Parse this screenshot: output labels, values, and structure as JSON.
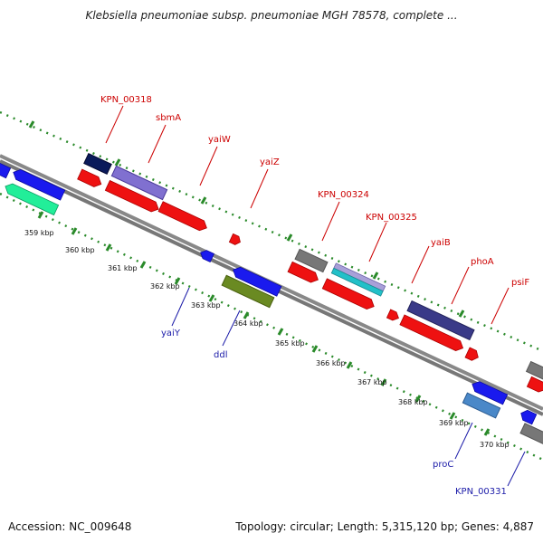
{
  "header": {
    "title": "Klebsiella pneumoniae subsp. pneumoniae MGH 78578, complete ..."
  },
  "footer": {
    "accession": "Accession: NC_009648",
    "summary": "Topology: circular; Length: 5,315,120 bp; Genes: 4,887"
  },
  "scale_ticks": [
    "359 kbp",
    "360 kbp",
    "361 kbp",
    "362 kbp",
    "363 kbp",
    "364 kbp",
    "365 kbp",
    "366 kbp",
    "367 kbp",
    "368 kbp",
    "369 kbp",
    "370 kbp"
  ],
  "gene_labels_top": [
    "KPN_00318",
    "sbmA",
    "yaiW",
    "yaiZ",
    "KPN_00324",
    "KPN_00325",
    "yaiB",
    "phoA",
    "psiF"
  ],
  "gene_labels_bottom": [
    "yaiY",
    "ddl",
    "proC",
    "KPN_00331"
  ],
  "colors": {
    "forward_label": "#cc0000",
    "reverse_label": "#1a1aa8",
    "forward_gene": "#ee1111",
    "reverse_gene": "#1a1aee",
    "backbone": "#8c8c8c",
    "tick_dots": "#2a8a2a"
  }
}
